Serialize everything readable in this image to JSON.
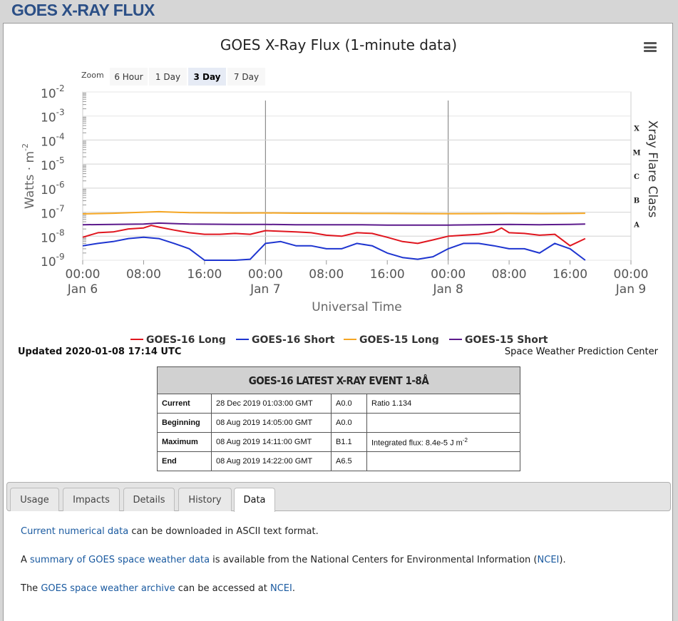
{
  "page": {
    "title": "GOES X-RAY FLUX"
  },
  "chart_menu_icon": "hamburger-menu-icon",
  "zoom": {
    "label": "Zoom",
    "options": [
      "6 Hour",
      "1 Day",
      "3 Day",
      "7 Day"
    ],
    "selected": "3 Day"
  },
  "chart_data": {
    "type": "line",
    "title": "GOES X-Ray Flux (1-minute data)",
    "xlabel": "Universal Time",
    "ylabel": "Watts · m",
    "ylabel_exponent": "-2",
    "y_scale": "log",
    "y_ticks": [
      {
        "base": "10",
        "exp": "-2"
      },
      {
        "base": "10",
        "exp": "-3"
      },
      {
        "base": "10",
        "exp": "-4"
      },
      {
        "base": "10",
        "exp": "-5"
      },
      {
        "base": "10",
        "exp": "-6"
      },
      {
        "base": "10",
        "exp": "-7"
      },
      {
        "base": "10",
        "exp": "-8"
      },
      {
        "base": "10",
        "exp": "-9"
      }
    ],
    "ylim": [
      "1e-9",
      "1e-2"
    ],
    "xlim": [
      "2020-01-06 00:00",
      "2020-01-09 00:00"
    ],
    "x_ticks": [
      {
        "time": "00:00",
        "date": "Jan 6"
      },
      {
        "time": "08:00",
        "date": ""
      },
      {
        "time": "16:00",
        "date": ""
      },
      {
        "time": "00:00",
        "date": "Jan 7"
      },
      {
        "time": "08:00",
        "date": ""
      },
      {
        "time": "16:00",
        "date": ""
      },
      {
        "time": "00:00",
        "date": "Jan 8"
      },
      {
        "time": "08:00",
        "date": ""
      },
      {
        "time": "16:00",
        "date": ""
      },
      {
        "time": "00:00",
        "date": "Jan 9"
      }
    ],
    "right_axis_title": "Xray Flare Class",
    "flare_classes": [
      "X",
      "M",
      "C",
      "B",
      "A"
    ],
    "grid": true,
    "legend_position": "bottom",
    "series": [
      {
        "name": "GOES-16 Long",
        "color": "#e0161f",
        "x_hours": [
          0,
          2,
          4,
          6,
          8,
          9,
          10,
          12,
          14,
          16,
          18,
          20,
          22,
          24,
          26,
          28,
          30,
          32,
          34,
          36,
          38,
          40,
          42,
          44,
          46,
          48,
          50,
          52,
          54,
          55,
          56,
          58,
          60,
          62,
          64,
          66
        ],
        "y": [
          "9e-9",
          "1.4e-8",
          "1.5e-8",
          "2e-8",
          "2.2e-8",
          "2.8e-8",
          "2.4e-8",
          "1.8e-8",
          "1.4e-8",
          "1.2e-8",
          "1.2e-8",
          "1.3e-8",
          "1.2e-8",
          "1.7e-8",
          "1.6e-8",
          "1.5e-8",
          "1.4e-8",
          "1.1e-8",
          "1e-8",
          "1.4e-8",
          "1.3e-8",
          "9e-9",
          "6e-9",
          "5e-9",
          "7e-9",
          "1e-8",
          "1.1e-8",
          "1.2e-8",
          "1.5e-8",
          "2.2e-8",
          "1.4e-8",
          "1.3e-8",
          "1.1e-8",
          "1.2e-8",
          "4e-9",
          "8e-9"
        ]
      },
      {
        "name": "GOES-16 Short",
        "color": "#1e35d0",
        "x_hours": [
          0,
          2,
          4,
          6,
          8,
          10,
          12,
          14,
          16,
          18,
          20,
          22,
          24,
          26,
          28,
          30,
          32,
          34,
          36,
          38,
          40,
          42,
          44,
          46,
          48,
          50,
          52,
          54,
          56,
          58,
          60,
          62,
          64,
          66
        ],
        "y": [
          "4e-9",
          "5e-9",
          "6e-9",
          "8e-9",
          "9e-9",
          "8e-9",
          "5e-9",
          "3e-9",
          "1e-9",
          "1e-9",
          "1e-9",
          "1.1e-9",
          "5e-9",
          "6e-9",
          "4e-9",
          "4e-9",
          "3e-9",
          "3e-9",
          "5e-9",
          "4e-9",
          "2e-9",
          "1.3e-9",
          "1.1e-9",
          "1.4e-9",
          "3e-9",
          "5e-9",
          "5e-9",
          "4e-9",
          "3e-9",
          "3e-9",
          "2e-9",
          "5e-9",
          "3e-9",
          "1e-9"
        ]
      },
      {
        "name": "GOES-15 Long",
        "color": "#f5a623",
        "x_hours": [
          0,
          4,
          8,
          10,
          14,
          20,
          24,
          28,
          32,
          36,
          40,
          44,
          48,
          52,
          56,
          60,
          64,
          66
        ],
        "y": [
          "8.5e-8",
          "9e-8",
          "1e-7",
          "1.05e-7",
          "9.5e-8",
          "9.2e-8",
          "9.3e-8",
          "9.1e-8",
          "9e-8",
          "8.9e-8",
          "8.8e-8",
          "8.7e-8",
          "8.6e-8",
          "8.7e-8",
          "8.8e-8",
          "8.7e-8",
          "8.8e-8",
          "9e-8"
        ]
      },
      {
        "name": "GOES-15 Short",
        "color": "#5c1a8c",
        "x_hours": [
          0,
          4,
          8,
          10,
          14,
          20,
          24,
          28,
          32,
          36,
          40,
          44,
          48,
          52,
          56,
          60,
          64,
          66
        ],
        "y": [
          "3e-8",
          "3.1e-8",
          "3.2e-8",
          "3.5e-8",
          "3.2e-8",
          "3.1e-8",
          "3.1e-8",
          "3e-8",
          "3e-8",
          "3e-8",
          "2.9e-8",
          "2.9e-8",
          "2.9e-8",
          "3e-8",
          "3.1e-8",
          "3e-8",
          "3.1e-8",
          "3.2e-8"
        ]
      }
    ]
  },
  "footer": {
    "updated": "Updated 2020-01-08 17:14 UTC",
    "source": "Space Weather Prediction Center"
  },
  "event_table": {
    "title": "GOES-16 LATEST X-RAY EVENT 1-8Å",
    "rows": [
      {
        "label": "Current",
        "time": "28 Dec 2019 01:03:00 GMT",
        "class": "A0.0",
        "extra": "Ratio 1.134",
        "extra_sup": ""
      },
      {
        "label": "Beginning",
        "time": "08 Aug 2019 14:05:00 GMT",
        "class": "A0.0",
        "extra": "",
        "extra_sup": ""
      },
      {
        "label": "Maximum",
        "time": "08 Aug 2019 14:11:00 GMT",
        "class": "B1.1",
        "extra": "Integrated flux: 8.4e-5 J m",
        "extra_sup": "-2"
      },
      {
        "label": "End",
        "time": "08 Aug 2019 14:22:00 GMT",
        "class": "A6.5",
        "extra": "",
        "extra_sup": ""
      }
    ]
  },
  "tabs": {
    "items": [
      "Usage",
      "Impacts",
      "Details",
      "History",
      "Data"
    ],
    "selected": "Data"
  },
  "content": {
    "p1": {
      "link": "Current numerical data",
      "rest": " can be downloaded in ASCII text format."
    },
    "p2": {
      "pre": "A ",
      "link": "summary of GOES space weather data",
      "mid": " is available from the National Centers for Environmental Information (",
      "link2": "NCEI",
      "post": ")."
    },
    "p3": {
      "pre": "The ",
      "link": "GOES space weather archive",
      "mid": " can be accessed at ",
      "link2": "NCEI",
      "post": "."
    }
  }
}
